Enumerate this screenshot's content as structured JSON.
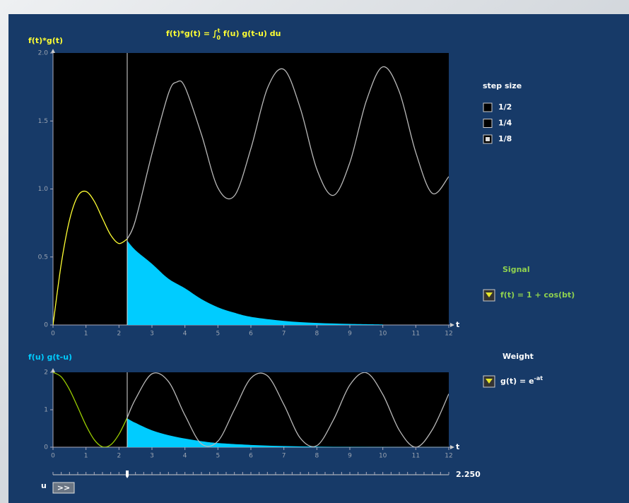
{
  "chart_data": [
    {
      "type": "line",
      "title_parts": [
        "f(t)*g(t) = ∫",
        "t",
        "0",
        " f(u) g(t-u) du"
      ],
      "y_label": "f(t)*g(t)",
      "x_label": "t",
      "xlim": [
        0,
        12
      ],
      "xticks": [
        0,
        1,
        2,
        3,
        4,
        5,
        6,
        7,
        8,
        9,
        10,
        11,
        12
      ],
      "ylim": [
        0,
        2
      ],
      "yticks": [
        0,
        0.5,
        {
          "value": 1,
          "label": "1.0"
        },
        1.5,
        {
          "value": 2,
          "label": "2.0"
        }
      ],
      "series": [
        {
          "color": "#00ccff",
          "fill": true,
          "x": [
            2.25,
            2.5,
            3,
            3.5,
            4,
            4.5,
            5,
            5.5,
            6,
            7,
            8,
            9,
            10
          ],
          "values": [
            0.62,
            0.55,
            0.45,
            0.34,
            0.27,
            0.19,
            0.13,
            0.09,
            0.06,
            0.03,
            0.015,
            0.008,
            0.004
          ]
        },
        {
          "color": "#ffff33",
          "x": [
            0,
            0.25,
            0.5,
            0.75,
            1,
            1.25,
            1.5,
            1.75,
            2,
            2.25
          ],
          "values": [
            0,
            0.449,
            0.771,
            0.947,
            0.982,
            0.91,
            0.783,
            0.661,
            0.599,
            0.632
          ]
        },
        {
          "color": "#b8b8b8",
          "x": [
            2.25,
            2.5,
            3,
            3.5,
            3.75,
            4,
            4.5,
            5,
            5.5,
            6,
            6.5,
            7,
            7.5,
            8,
            8.5,
            9,
            9.5,
            10,
            10.5,
            11,
            11.5,
            12
          ],
          "values": [
            0.632,
            0.77,
            1.26,
            1.702,
            1.786,
            1.75,
            1.402,
            1.008,
            0.95,
            1.297,
            1.74,
            1.879,
            1.592,
            1.145,
            0.953,
            1.194,
            1.648,
            1.898,
            1.715,
            1.268,
            0.968,
            1.091
          ]
        }
      ]
    },
    {
      "type": "line",
      "y_label": "f(u) g(t-u)",
      "x_label": "t",
      "xlim": [
        0,
        12
      ],
      "xticks": [
        0,
        1,
        2,
        3,
        4,
        5,
        6,
        7,
        8,
        9,
        10,
        11,
        12
      ],
      "ylim": [
        0,
        2
      ],
      "yticks": [
        0,
        1,
        2
      ],
      "series": [
        {
          "color": "#00ccff",
          "fill": true,
          "x": [
            2.25,
            2.5,
            3,
            3.5,
            4,
            4.5,
            5,
            6,
            7,
            8,
            9,
            10,
            11,
            12
          ],
          "values": [
            0.77,
            0.65,
            0.45,
            0.32,
            0.23,
            0.16,
            0.11,
            0.06,
            0.03,
            0.015,
            0.008,
            0.004,
            0.002,
            0.001
          ]
        },
        {
          "color": "#99cc00",
          "x": [
            0,
            0.25,
            0.5,
            0.75,
            1,
            1.25,
            1.5,
            1.75,
            2,
            2.25
          ],
          "values": [
            2,
            1.878,
            1.54,
            1.071,
            0.584,
            0.199,
            0.01,
            0.064,
            0.346,
            0.789
          ]
        },
        {
          "color": "#b8b8b8",
          "x": [
            2.25,
            2.5,
            3,
            3.5,
            4,
            4.5,
            5,
            5.5,
            6,
            6.5,
            7,
            7.5,
            8,
            8.5,
            9,
            9.5,
            10,
            10.5,
            11,
            11.5,
            12
          ],
          "values": [
            0.789,
            1.284,
            1.96,
            1.754,
            0.855,
            0.089,
            0.161,
            1.004,
            1.844,
            1.907,
            1.137,
            0.24,
            0.042,
            0.725,
            1.66,
            1.989,
            1.408,
            0.452,
            0,
            0.467,
            1.424
          ]
        }
      ]
    }
  ],
  "controls": {
    "slider": {
      "label": "u",
      "value": {
        "value": 2.25,
        "label": "2.250"
      },
      "button": ">>"
    },
    "step_size": {
      "title": "step size",
      "options": [
        "1/2",
        "1/4",
        "1/8"
      ],
      "selected": 2
    },
    "signal": {
      "title": "Signal",
      "formula": "f(t) = 1 + cos(bt)"
    },
    "weight": {
      "title": "Weight",
      "formula_parts": [
        "g(t) = e",
        "-at"
      ]
    }
  }
}
